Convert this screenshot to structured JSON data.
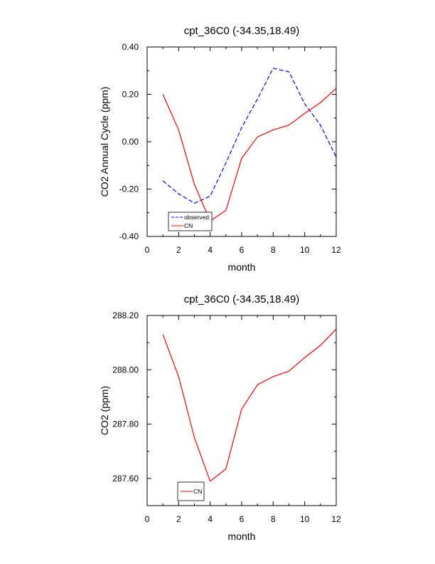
{
  "chart_data": [
    {
      "type": "line",
      "title": "cpt_36C0 (-34.35,18.49)",
      "xlabel": "month",
      "ylabel": "CO2 Annual Cycle (ppm)",
      "xlim": [
        0,
        12
      ],
      "ylim": [
        -0.4,
        0.4
      ],
      "xticks": [
        0,
        2,
        4,
        6,
        8,
        10,
        12
      ],
      "yticks": [
        -0.4,
        -0.2,
        0.0,
        0.2,
        0.4
      ],
      "ytick_labels": [
        "-0.40",
        "-0.20",
        "0.00",
        "0.20",
        "0.40"
      ],
      "x": [
        1,
        2,
        3,
        4,
        5,
        6,
        7,
        8,
        9,
        10,
        11,
        12
      ],
      "series": [
        {
          "name": "observed",
          "color": "#0000ff",
          "dash": "dashed",
          "values": [
            -0.165,
            -0.22,
            -0.26,
            -0.23,
            -0.09,
            0.06,
            0.18,
            0.31,
            0.295,
            0.16,
            0.07,
            -0.065
          ]
        },
        {
          "name": "CN",
          "color": "#ff0000",
          "dash": "solid",
          "values": [
            0.2,
            0.05,
            -0.18,
            -0.335,
            -0.29,
            -0.07,
            0.02,
            0.05,
            0.07,
            0.12,
            0.165,
            0.225
          ]
        }
      ],
      "legend": "bottom-left"
    },
    {
      "type": "line",
      "title": "cpt_36C0 (-34.35,18.49)",
      "xlabel": "month",
      "ylabel": "CO2 (ppm)",
      "xlim": [
        0,
        12
      ],
      "ylim": [
        287.5,
        288.2
      ],
      "xticks": [
        0,
        2,
        4,
        6,
        8,
        10,
        12
      ],
      "yticks": [
        287.6,
        287.8,
        288.0,
        288.2
      ],
      "ytick_labels": [
        "287.60",
        "287.80",
        "288.00",
        "288.20"
      ],
      "x": [
        1,
        2,
        3,
        4,
        5,
        6,
        7,
        8,
        9,
        10,
        11,
        12
      ],
      "series": [
        {
          "name": "CN",
          "color": "#ff0000",
          "dash": "solid",
          "values": [
            288.13,
            287.975,
            287.75,
            287.59,
            287.635,
            287.855,
            287.945,
            287.975,
            287.995,
            288.045,
            288.09,
            288.15
          ]
        }
      ],
      "legend": "bottom-left"
    }
  ]
}
